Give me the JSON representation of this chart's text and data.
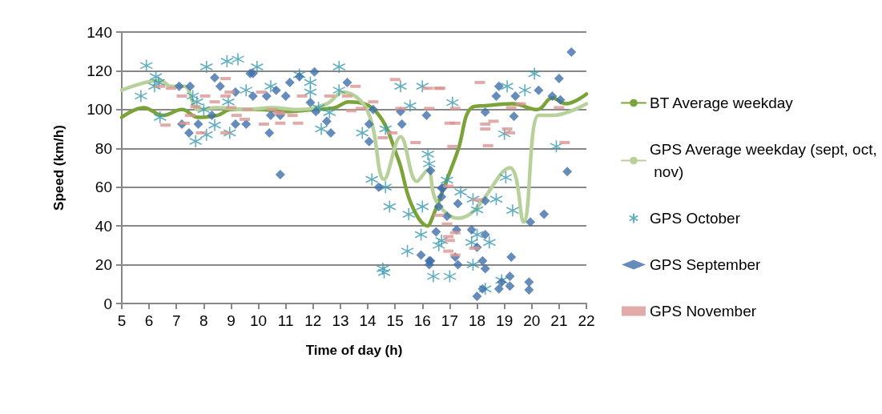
{
  "chart_data": {
    "type": "scatter",
    "xlabel": "Time of day (h)",
    "ylabel": "Speed (km/h)",
    "xlim": [
      5,
      22
    ],
    "xticks": [
      5,
      6,
      7,
      8,
      9,
      10,
      11,
      12,
      13,
      14,
      15,
      16,
      17,
      18,
      19,
      20,
      21,
      22
    ],
    "ylim": [
      0,
      140
    ],
    "yticks": [
      0,
      20,
      40,
      60,
      80,
      100,
      120,
      140
    ],
    "grid": "y",
    "legend": "right",
    "series": [
      {
        "name": "BT Average weekday",
        "type": "line",
        "marker": "none",
        "color": "#7aa33a",
        "x": [
          5,
          5.8,
          6.5,
          7.2,
          7.8,
          8.5,
          9,
          10,
          11,
          12,
          12.8,
          13.3,
          14.3,
          15.1,
          15.6,
          16.2,
          16.3,
          16.9,
          17.3,
          17.8,
          18.3,
          19.3,
          20.2,
          20.75,
          21.25,
          22
        ],
        "values": [
          96,
          101,
          97,
          100,
          96,
          97,
          100,
          100,
          99,
          100,
          101,
          104,
          99,
          75,
          51,
          40,
          42,
          64,
          79,
          101,
          102,
          103,
          100,
          106,
          103,
          108
        ]
      },
      {
        "name": "GPS Average weekday (sept, oct, nov)",
        "type": "line",
        "marker": "none",
        "color": "#b8d19a",
        "x": [
          5,
          6.4,
          6.8,
          7.3,
          7.8,
          8.5,
          9.5,
          10.5,
          11.5,
          12.5,
          13.1,
          14,
          14.6,
          15.2,
          15.8,
          16.2,
          16.5,
          17.3,
          17.9,
          19.2,
          19.7,
          20.25,
          20.75,
          22
        ],
        "values": [
          110,
          115,
          112,
          112,
          100,
          101,
          100,
          101,
          100,
          103,
          109,
          99,
          64,
          86,
          63,
          69,
          53,
          44,
          48,
          70,
          42,
          97,
          97,
          103
        ]
      },
      {
        "name": "GPS October",
        "marker": "cross",
        "color": "#3a9ab0",
        "x": [
          5.9,
          6.25,
          6.35,
          5.7,
          6.4,
          6.2,
          7.6,
          7.75,
          7.7,
          8.1,
          8.1,
          8.85,
          9.25,
          8.95,
          9.95,
          8.4,
          8.9,
          10.45,
          9.55,
          8.0,
          11.5,
          11.9,
          11.9,
          12.2,
          12.3,
          12.6,
          12.95,
          12.95,
          13.8,
          14.65,
          15.2,
          16.0,
          15.55,
          14.15,
          14.65,
          14.8,
          15.5,
          15.95,
          15.45,
          14.55,
          14.6,
          16.2,
          16.25,
          16.0,
          17.1,
          16.9,
          17.4,
          17.85,
          18.7,
          18.0,
          19.0,
          19.05,
          19.3,
          20.9,
          20.1,
          19.1,
          19.75,
          18.0,
          18.45,
          17.8,
          17.85,
          16.7,
          16.6,
          17.0,
          16.4,
          18.3,
          18.9
        ],
        "values": [
          122.7,
          117,
          114,
          107,
          96,
          112,
          107,
          104,
          83.6,
          87,
          122,
          124.9,
          126,
          88,
          122,
          92,
          104,
          112,
          110,
          100,
          118,
          114,
          109,
          101,
          90,
          98.5,
          122,
          110,
          88,
          90,
          112,
          112,
          102,
          64,
          60,
          50,
          46,
          35.5,
          27,
          18,
          16,
          77,
          72,
          50,
          103.6,
          63.6,
          57.5,
          53.8,
          53.8,
          48.3,
          87.5,
          65,
          48,
          81,
          118.5,
          112,
          110,
          35.5,
          31.5,
          31.5,
          20,
          32.4,
          30,
          14,
          14,
          7.5,
          12
        ]
      },
      {
        "name": "GPS September",
        "marker": "diamond",
        "color": "#3f6faa",
        "x": [
          7.1,
          7.5,
          7.2,
          7.46,
          7.8,
          8.4,
          8.6,
          8.3,
          9.16,
          9.16,
          9.55,
          9.7,
          9.8,
          9.8,
          10.3,
          10.65,
          10.45,
          10.8,
          10.4,
          10.8,
          11.15,
          11.5,
          12.05,
          11.0,
          11.9,
          12.1,
          12.5,
          12.65,
          13.25,
          14.2,
          14.05,
          14.05,
          15.2,
          15.25,
          16.15,
          14.4,
          16.3,
          15.95,
          16.25,
          16.25,
          16.7,
          16.7,
          16.6,
          16.5,
          16.75,
          16.9,
          17.3,
          17.25,
          17.8,
          18.3,
          18.0,
          18.2,
          18.3,
          17.2,
          17.3,
          16.3,
          18.0,
          18.2,
          18.8,
          18.9,
          19.2,
          19.2,
          19.9,
          19.9,
          19.25,
          18.3,
          19.95,
          20.45,
          18.3,
          19.35,
          18.8,
          18.7,
          19.4,
          20.25,
          20.75,
          21.05,
          21.0,
          21.3,
          21.45
        ],
        "values": [
          112,
          112,
          92.5,
          88,
          92.5,
          116.5,
          112,
          97,
          109,
          92.5,
          92.5,
          118.6,
          118.6,
          107,
          107,
          110,
          97,
          97,
          88,
          66.5,
          114,
          117,
          119.5,
          107,
          103.7,
          99,
          94,
          88,
          114,
          100,
          92.5,
          83.5,
          99,
          92.5,
          97,
          60,
          68.6,
          25,
          22,
          20,
          59.5,
          55,
          50,
          37,
          59.5,
          45,
          51.5,
          38,
          38,
          35.5,
          29,
          22,
          18,
          24,
          20,
          22,
          3.7,
          7.5,
          7.5,
          11,
          14,
          9,
          11,
          7,
          24,
          53,
          42,
          46,
          98.7,
          96.5,
          112,
          107,
          107,
          110,
          107,
          105,
          116,
          68,
          129.7
        ]
      },
      {
        "name": "GPS November",
        "marker": "square",
        "color": "#d99694",
        "x": [
          6.4,
          6.8,
          7.2,
          6.6,
          7.7,
          7.5,
          7.3,
          7.9,
          8.05,
          8.4,
          8.8,
          8.8,
          8.95,
          8.8,
          9.0,
          9.2,
          9.5,
          9.6,
          10.1,
          10.2,
          10.5,
          10.8,
          10.8,
          10.75,
          11.25,
          11.45,
          11.6,
          12.6,
          13.25,
          13.55,
          13.4,
          13.75,
          14.2,
          14.55,
          14.9,
          15.75,
          15.0,
          15.2,
          16.25,
          16.2,
          16.65,
          16.6,
          17.2,
          17.0,
          17.2,
          17.1,
          16.95,
          18.0,
          16.6,
          16.9,
          17.2,
          16.95,
          17.0,
          16.95,
          17.2,
          17.9,
          18.1,
          18.3,
          18.3,
          18.6,
          18.4,
          19.1,
          19.2,
          19.25,
          19.6,
          21.0,
          21.2
        ],
        "values": [
          112,
          111,
          107,
          92,
          101.5,
          97,
          93,
          88,
          107,
          104,
          116,
          107,
          109,
          88,
          101,
          97,
          95,
          100,
          109,
          92.5,
          100,
          98,
          93,
          98.5,
          97,
          93,
          107,
          107,
          107,
          112,
          99.4,
          100.6,
          104,
          85.5,
          88,
          83,
          115.5,
          100.6,
          100.6,
          111,
          111,
          111,
          100.6,
          93,
          93,
          81,
          60.5,
          53.5,
          45.5,
          41,
          36.5,
          34.5,
          32.5,
          27,
          25,
          28.5,
          114,
          92.5,
          90,
          94,
          81.4,
          90,
          88,
          101,
          103,
          101,
          83
        ]
      }
    ]
  }
}
